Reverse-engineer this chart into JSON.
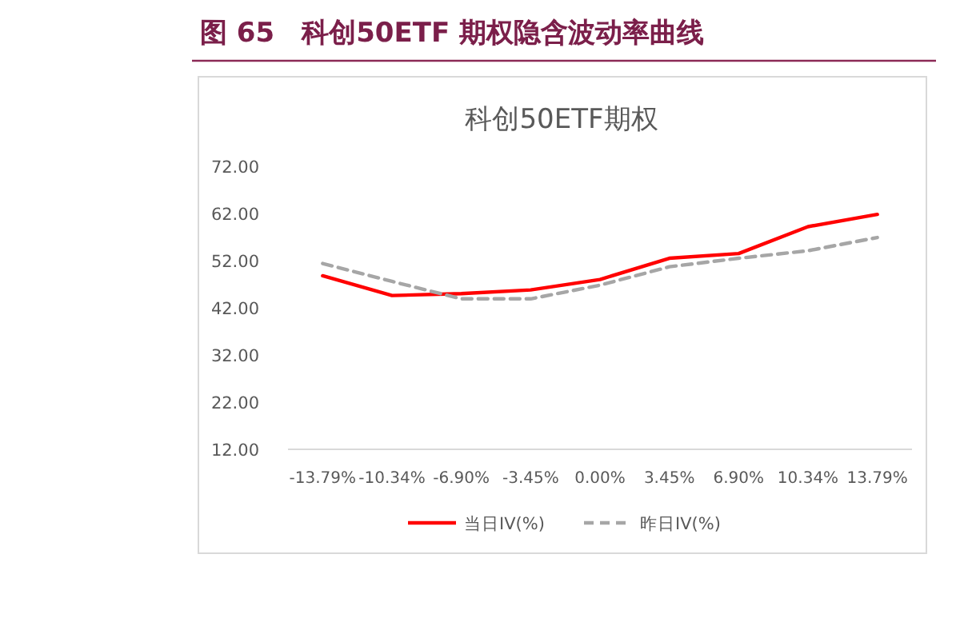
{
  "chart_data": {
    "type": "line",
    "title": "图 65　科创50ETF 期权隐含波动率曲线",
    "subtitle": "科创50ETF期权",
    "categories": [
      "-13.79%",
      "-10.34%",
      "-6.90%",
      "-3.45%",
      "0.00%",
      "3.45%",
      "6.90%",
      "10.34%",
      "13.79%"
    ],
    "series": [
      {
        "name": "当日IV(%)",
        "color": "#ff0000",
        "line_style": "solid",
        "values": [
          48.8,
          44.6,
          45.0,
          45.8,
          48.0,
          52.5,
          53.5,
          59.2,
          61.8
        ]
      },
      {
        "name": "昨日IV(%)",
        "color": "#a6a6a6",
        "line_style": "dashed",
        "values": [
          51.4,
          47.6,
          43.9,
          43.9,
          46.8,
          50.7,
          52.5,
          54.1,
          56.9
        ]
      }
    ],
    "ylim": [
      12,
      72
    ],
    "yticks": [
      {
        "value": 12,
        "label": "12.00"
      },
      {
        "value": 22,
        "label": "22.00"
      },
      {
        "value": 32,
        "label": "32.00"
      },
      {
        "value": 42,
        "label": "42.00"
      },
      {
        "value": 52,
        "label": "52.00"
      },
      {
        "value": 62,
        "label": "62.00"
      },
      {
        "value": 72,
        "label": "72.00"
      }
    ],
    "grid": false,
    "legend": "bottom",
    "marker": "none"
  }
}
